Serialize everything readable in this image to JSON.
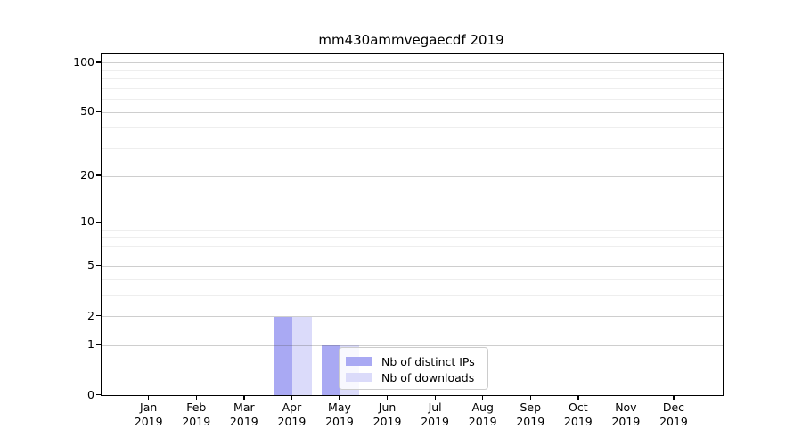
{
  "chart_data": {
    "type": "bar",
    "title": "mm430ammvegaecdf 2019",
    "categories": [
      "Jan",
      "Feb",
      "Mar",
      "Apr",
      "May",
      "Jun",
      "Jul",
      "Aug",
      "Sep",
      "Oct",
      "Nov",
      "Dec"
    ],
    "category_year": "2019",
    "series": [
      {
        "name": "Nb of distinct IPs",
        "color": "#a9a9f3",
        "values": [
          0,
          0,
          0,
          2,
          1,
          0,
          0,
          0,
          0,
          0,
          0,
          0
        ]
      },
      {
        "name": "Nb of downloads",
        "color": "#dbdbfa",
        "values": [
          0,
          0,
          0,
          2,
          1,
          0,
          0,
          0,
          0,
          0,
          0,
          0
        ]
      }
    ],
    "xlabel": "",
    "ylabel": "",
    "yscale": "log1p",
    "ylim": [
      0,
      113
    ],
    "yticks": [
      0,
      1,
      2,
      5,
      10,
      20,
      50,
      100
    ],
    "minor_gridlines": [
      3,
      4,
      6,
      7,
      8,
      9,
      30,
      40,
      60,
      70,
      80,
      90
    ],
    "grid": true,
    "legend_position": "lower-right-inside",
    "colors": {
      "background": "#ffffff",
      "axis": "#000000",
      "major_grid": "rgba(80,80,80,0.28)",
      "minor_grid": "rgba(0,0,0,0.065)",
      "legend_border": "#cccccc",
      "legend_background": "rgba(255,255,255,0.8)"
    }
  }
}
